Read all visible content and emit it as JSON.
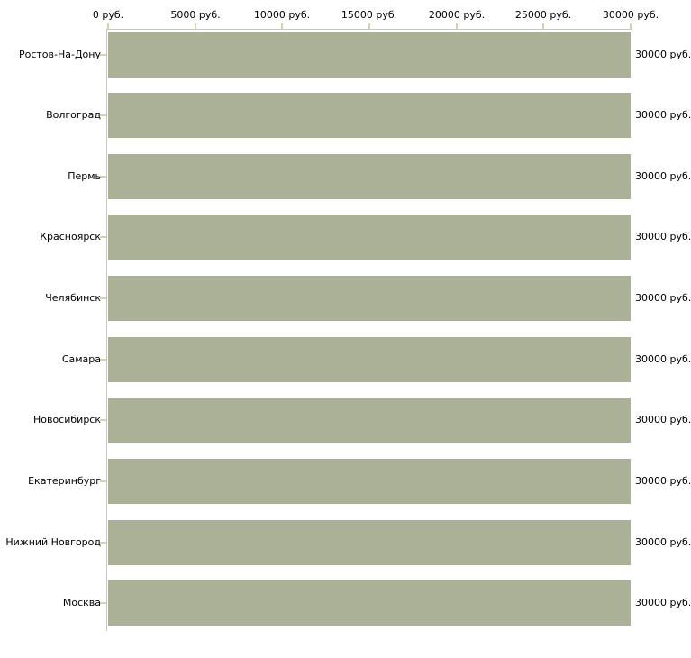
{
  "chart_data": {
    "type": "bar",
    "orientation": "horizontal",
    "title": "",
    "categories": [
      "Ростов-На-Дону",
      "Волгоград",
      "Пермь",
      "Красноярск",
      "Челябинск",
      "Самара",
      "Новосибирск",
      "Екатеринбург",
      "Нижний Новгород",
      "Москва"
    ],
    "values": [
      30000,
      30000,
      30000,
      30000,
      30000,
      30000,
      30000,
      30000,
      30000,
      30000
    ],
    "bar_value_labels": [
      "30000 руб.",
      "30000 руб.",
      "30000 руб.",
      "30000 руб.",
      "30000 руб.",
      "30000 руб.",
      "30000 руб.",
      "30000 руб.",
      "30000 руб.",
      "30000 руб."
    ],
    "x_axis": {
      "position": "top",
      "unit": "руб.",
      "tick_labels": [
        "0 руб.",
        "5000 руб.",
        "10000 руб.",
        "15000 руб.",
        "20000 руб.",
        "25000 руб.",
        "30000 руб."
      ],
      "min": 0,
      "max": 30000,
      "tick_step": 5000
    },
    "xlim": [
      0,
      30000
    ],
    "grid": false,
    "colors": {
      "bar": "#abb197",
      "tick": "#d5d2a8",
      "axis_line": "#c6c6c6",
      "text": "#000000",
      "background": "#ffffff"
    }
  }
}
